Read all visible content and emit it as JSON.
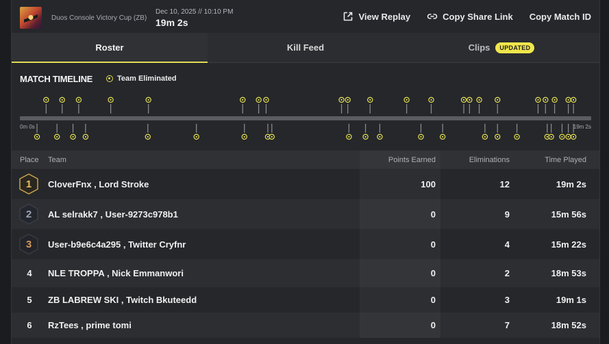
{
  "header": {
    "event_name": "Duos Console Victory Cup (ZB)",
    "match_date": "Dec 10, 2025 // 10:10 PM",
    "match_duration": "19m 2s",
    "actions": [
      {
        "label": "View Replay",
        "icon": "external-link-icon"
      },
      {
        "label": "Copy Share Link",
        "icon": "link-icon"
      },
      {
        "label": "Copy Match ID",
        "icon": ""
      }
    ]
  },
  "tabs": [
    {
      "label": "Roster",
      "active": true
    },
    {
      "label": "Kill Feed",
      "active": false
    },
    {
      "label": "Clips",
      "active": false,
      "badge": "UPDATED"
    }
  ],
  "timeline": {
    "title": "MATCH TIMELINE",
    "legend_label": "Team Eliminated",
    "start_label": "0m 0s",
    "end_label": "19m 2s",
    "accent_color": "#e4de52",
    "top_markers": [
      0.046,
      0.074,
      0.103,
      0.159,
      0.225,
      0.39,
      0.418,
      0.431,
      0.563,
      0.574,
      0.613,
      0.677,
      0.72,
      0.777,
      0.787,
      0.804,
      0.836,
      0.907,
      0.92,
      0.936,
      0.96,
      0.969
    ],
    "bottom_markers": [
      0.03,
      0.065,
      0.093,
      0.115,
      0.224,
      0.309,
      0.393,
      0.434,
      0.441,
      0.576,
      0.605,
      0.63,
      0.702,
      0.74,
      0.814,
      0.836,
      0.87,
      0.923,
      0.93,
      0.949,
      0.96,
      0.969
    ]
  },
  "table": {
    "columns": {
      "place": "Place",
      "team": "Team",
      "points": "Points Earned",
      "eliminations": "Eliminations",
      "time_played": "Time Played"
    },
    "rows": [
      {
        "place": "1",
        "team": "CloverFnx , Lord Stroke",
        "points": "100",
        "eliminations": "12",
        "time_played": "19m 2s",
        "medal": "gold"
      },
      {
        "place": "2",
        "team": "AL selrakk7 , User-9273c978b1",
        "points": "0",
        "eliminations": "9",
        "time_played": "15m 56s",
        "medal": "silver"
      },
      {
        "place": "3",
        "team": "User-b9e6c4a295 , Twitter Cryfnr",
        "points": "0",
        "eliminations": "4",
        "time_played": "15m 22s",
        "medal": "bronze"
      },
      {
        "place": "4",
        "team": "NLE TROPPA , Nick Emmanwori",
        "points": "0",
        "eliminations": "2",
        "time_played": "18m 53s"
      },
      {
        "place": "5",
        "team": "ZB LABREW SKI , Twitch Bkuteedd",
        "points": "0",
        "eliminations": "3",
        "time_played": "19m 1s"
      },
      {
        "place": "6",
        "team": "RzTees , prime tomi",
        "points": "0",
        "eliminations": "7",
        "time_played": "18m 52s"
      }
    ]
  }
}
